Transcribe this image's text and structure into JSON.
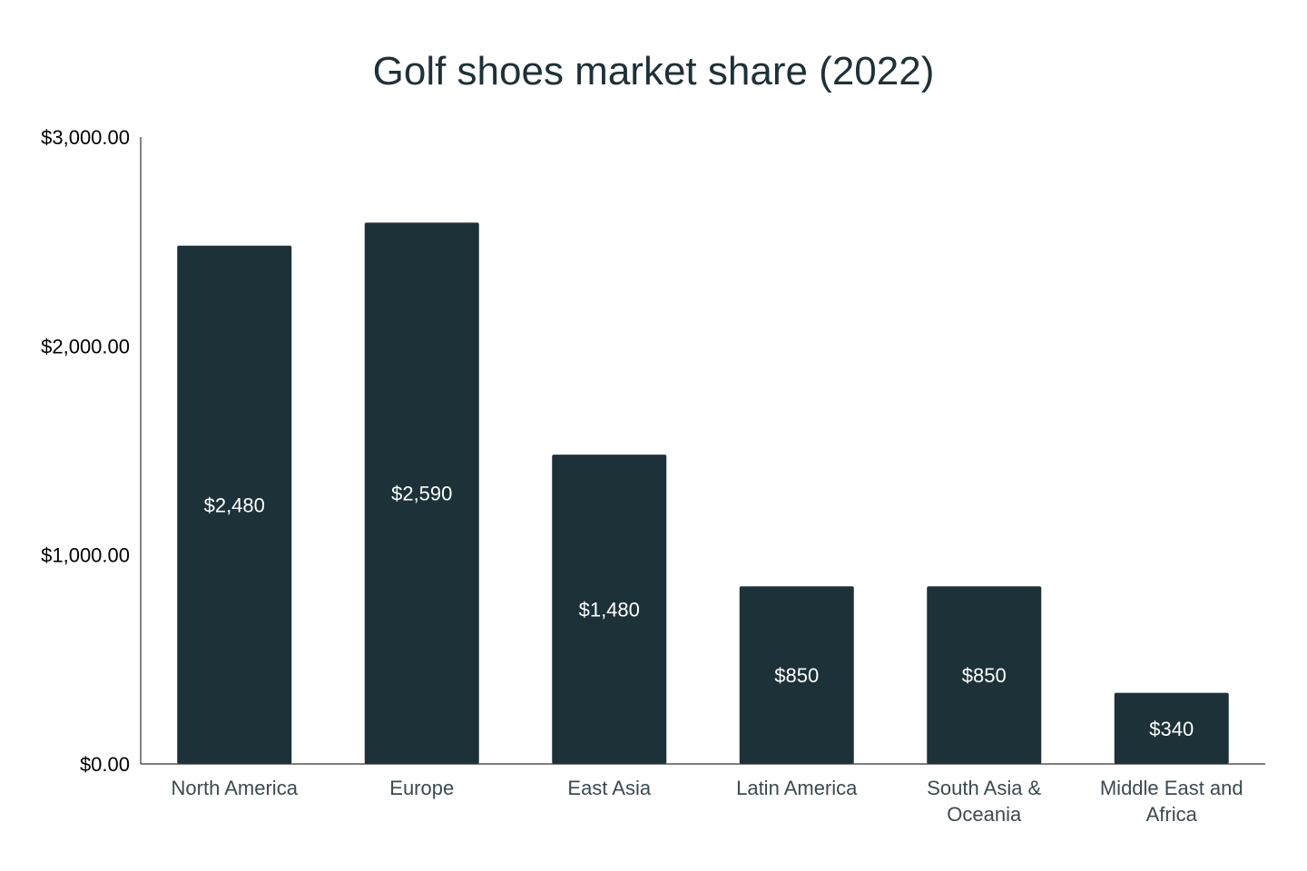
{
  "chart_data": {
    "type": "bar",
    "title": "Golf shoes market share (2022)",
    "categories": [
      [
        "North America"
      ],
      [
        "Europe"
      ],
      [
        "East Asia"
      ],
      [
        "Latin America"
      ],
      [
        "South Asia &",
        "Oceania"
      ],
      [
        "Middle East and",
        "Africa"
      ]
    ],
    "values": [
      2480,
      2590,
      1480,
      850,
      850,
      340
    ],
    "data_labels": [
      "$2,480",
      "$2,590",
      "$1,480",
      "$850",
      "$850",
      "$340"
    ],
    "y_ticks": [
      {
        "value": 0,
        "label": "$0.00"
      },
      {
        "value": 1000,
        "label": "$1,000.00"
      },
      {
        "value": 2000,
        "label": "$2,000.00"
      },
      {
        "value": 3000,
        "label": "$3,000.00"
      }
    ],
    "ylim": [
      0,
      3000
    ],
    "grid": false,
    "legend": "none",
    "colors": {
      "bar": "#1d3238",
      "title": "#1d3138",
      "axis": "#333333",
      "data_label": "#ffffff"
    }
  }
}
